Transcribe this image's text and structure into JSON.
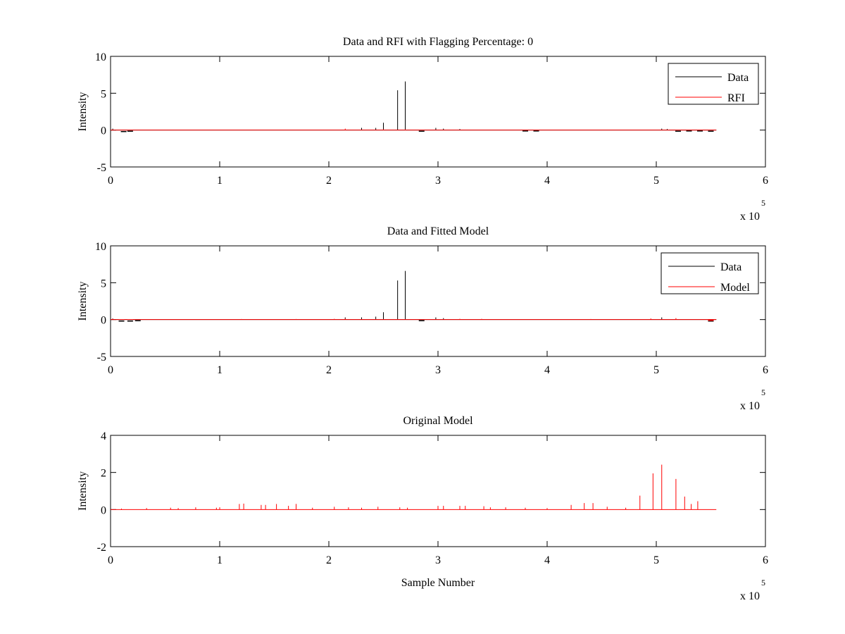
{
  "figure": {
    "background": "#ffffff"
  },
  "chart_data": [
    {
      "type": "line",
      "title": "Data and RFI with Flagging Percentage: 0",
      "xlabel": "",
      "ylabel": "Intensity",
      "xlim": [
        0,
        6
      ],
      "ylim": [
        -5,
        10
      ],
      "xticks": [
        "0",
        "1",
        "2",
        "3",
        "4",
        "5",
        "6"
      ],
      "yticks": [
        "-5",
        "0",
        "5",
        "10"
      ],
      "x_multiplier_text": "x 10",
      "x_multiplier_exponent": "5",
      "legend": {
        "position": "top-right",
        "entries": [
          {
            "name": "Data",
            "color": "#000000"
          },
          {
            "name": "RFI",
            "color": "#ff0000"
          }
        ]
      },
      "series": [
        {
          "name": "Data",
          "color": "#000000",
          "baseline_end": 5.55,
          "spikes": [
            [
              0.02,
              0.2
            ],
            [
              2.3,
              0.3
            ],
            [
              2.43,
              0.3
            ],
            [
              2.5,
              1.0
            ],
            [
              2.63,
              5.4
            ],
            [
              2.7,
              6.6
            ],
            [
              2.98,
              0.3
            ],
            [
              3.05,
              0.2
            ],
            [
              3.2,
              0.15
            ],
            [
              5.05,
              0.2
            ],
            [
              5.1,
              0.15
            ]
          ],
          "dips": [
            [
              0.12,
              0.2
            ],
            [
              0.18,
              0.15
            ],
            [
              2.85,
              0.15
            ],
            [
              3.8,
              0.12
            ],
            [
              3.9,
              0.12
            ],
            [
              5.2,
              0.15
            ],
            [
              5.3,
              0.12
            ],
            [
              5.4,
              0.12
            ],
            [
              5.5,
              0.15
            ]
          ]
        },
        {
          "name": "RFI",
          "color": "#ff0000",
          "baseline_end": 5.55,
          "spikes": [
            [
              2.15,
              0.2
            ],
            [
              2.5,
              0.1
            ],
            [
              2.7,
              0.1
            ]
          ],
          "dips": []
        }
      ]
    },
    {
      "type": "line",
      "title": "Data and Fitted Model",
      "xlabel": "",
      "ylabel": "Intensity",
      "xlim": [
        0,
        6
      ],
      "ylim": [
        -5,
        10
      ],
      "xticks": [
        "0",
        "1",
        "2",
        "3",
        "4",
        "5",
        "6"
      ],
      "yticks": [
        "-5",
        "0",
        "5",
        "10"
      ],
      "x_multiplier_text": "x 10",
      "x_multiplier_exponent": "5",
      "legend": {
        "position": "top-right",
        "entries": [
          {
            "name": "Data",
            "color": "#000000"
          },
          {
            "name": "Model",
            "color": "#ff0000"
          }
        ]
      },
      "series": [
        {
          "name": "Data",
          "color": "#000000",
          "baseline_end": 5.55,
          "spikes": [
            [
              0.02,
              0.15
            ],
            [
              2.15,
              0.3
            ],
            [
              2.3,
              0.3
            ],
            [
              2.43,
              0.4
            ],
            [
              2.5,
              1.0
            ],
            [
              2.63,
              5.3
            ],
            [
              2.7,
              6.6
            ],
            [
              2.98,
              0.3
            ],
            [
              3.05,
              0.2
            ],
            [
              5.05,
              0.3
            ]
          ],
          "dips": [
            [
              0.1,
              0.2
            ],
            [
              0.18,
              0.2
            ],
            [
              0.25,
              0.15
            ],
            [
              2.85,
              0.15
            ],
            [
              5.5,
              0.2
            ]
          ]
        },
        {
          "name": "Model",
          "color": "#ff0000",
          "baseline_end": 5.55,
          "spikes": [
            [
              0.02,
              0.1
            ],
            [
              1.2,
              0.08
            ],
            [
              1.7,
              0.08
            ],
            [
              2.05,
              0.1
            ],
            [
              2.15,
              0.12
            ],
            [
              3.2,
              0.1
            ],
            [
              3.4,
              0.1
            ],
            [
              4.4,
              0.08
            ],
            [
              4.95,
              0.15
            ],
            [
              5.18,
              0.2
            ]
          ],
          "dips": [
            [
              5.5,
              0.1
            ]
          ]
        }
      ]
    },
    {
      "type": "line",
      "title": "Original Model",
      "xlabel": "Sample Number",
      "ylabel": "Intensity",
      "xlim": [
        0,
        6
      ],
      "ylim": [
        -2,
        4
      ],
      "xticks": [
        "0",
        "1",
        "2",
        "3",
        "4",
        "5",
        "6"
      ],
      "yticks": [
        "-2",
        "0",
        "2",
        "4"
      ],
      "x_multiplier_text": "x 10",
      "x_multiplier_exponent": "5",
      "legend": null,
      "series": [
        {
          "name": "",
          "color": "#ff0000",
          "baseline_end": 5.55,
          "spikes": [
            [
              0.1,
              0.05
            ],
            [
              0.33,
              0.08
            ],
            [
              0.55,
              0.1
            ],
            [
              0.62,
              0.08
            ],
            [
              0.78,
              0.12
            ],
            [
              0.97,
              0.1
            ],
            [
              1.0,
              0.12
            ],
            [
              1.18,
              0.3
            ],
            [
              1.22,
              0.32
            ],
            [
              1.38,
              0.25
            ],
            [
              1.42,
              0.25
            ],
            [
              1.52,
              0.3
            ],
            [
              1.63,
              0.2
            ],
            [
              1.7,
              0.3
            ],
            [
              1.85,
              0.1
            ],
            [
              2.05,
              0.15
            ],
            [
              2.18,
              0.12
            ],
            [
              2.3,
              0.1
            ],
            [
              2.45,
              0.15
            ],
            [
              2.65,
              0.12
            ],
            [
              2.72,
              0.1
            ],
            [
              3.0,
              0.2
            ],
            [
              3.05,
              0.2
            ],
            [
              3.2,
              0.2
            ],
            [
              3.25,
              0.2
            ],
            [
              3.42,
              0.18
            ],
            [
              3.48,
              0.12
            ],
            [
              3.62,
              0.12
            ],
            [
              3.8,
              0.1
            ],
            [
              4.0,
              0.08
            ],
            [
              4.22,
              0.25
            ],
            [
              4.34,
              0.35
            ],
            [
              4.42,
              0.35
            ],
            [
              4.55,
              0.15
            ],
            [
              4.72,
              0.1
            ],
            [
              4.85,
              0.75
            ],
            [
              4.97,
              1.95
            ],
            [
              5.05,
              2.42
            ],
            [
              5.18,
              1.65
            ],
            [
              5.26,
              0.7
            ],
            [
              5.32,
              0.3
            ],
            [
              5.38,
              0.45
            ]
          ],
          "dips": []
        }
      ]
    }
  ]
}
